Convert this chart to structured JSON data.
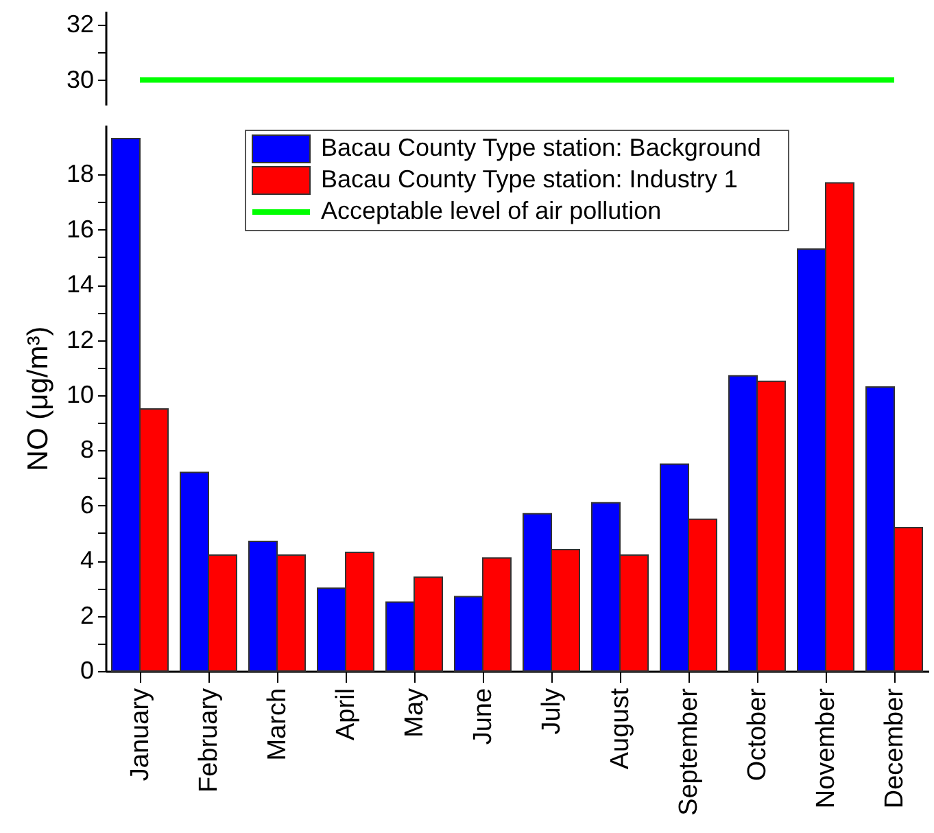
{
  "chart_data": [
    {
      "type": "line",
      "categories": [
        null,
        null,
        null,
        null,
        null,
        null,
        null,
        null,
        null,
        null,
        null,
        null
      ],
      "series": [
        {
          "name": "Acceptable level of air pollution",
          "color": "#00ff00",
          "values": [
            30,
            30,
            30,
            30,
            30,
            30,
            30,
            30,
            30,
            30,
            30,
            30
          ]
        }
      ],
      "ylim": [
        29.1,
        32.5
      ],
      "yticks": [
        30,
        {
          "value": 31,
          "label": null
        },
        32
      ],
      "tick_labels": "y"
    },
    {
      "type": "bar",
      "categories": [
        "January",
        "February",
        "March",
        "April",
        "May",
        "June",
        "July",
        "August",
        "September",
        "October",
        "November",
        "December"
      ],
      "series": [
        {
          "name": "Bacau County Type station: Background",
          "color": "#0000ff",
          "values": [
            19.3,
            7.2,
            4.7,
            3.0,
            2.5,
            2.7,
            5.7,
            6.1,
            7.5,
            10.7,
            15.3,
            10.3
          ]
        },
        {
          "name": "Bacau County Type station: Industry 1",
          "color": "#ff0000",
          "values": [
            9.5,
            4.2,
            4.2,
            4.3,
            3.4,
            4.1,
            4.4,
            4.2,
            5.5,
            10.5,
            17.7,
            5.2
          ]
        }
      ],
      "ylabel": "NO (μg/m³)",
      "ylim": [
        0,
        19.8
      ],
      "yticks": [
        0,
        {
          "value": 1,
          "label": null
        },
        2,
        {
          "value": 3,
          "label": null
        },
        4,
        {
          "value": 5,
          "label": null
        },
        6,
        {
          "value": 7,
          "label": null
        },
        8,
        {
          "value": 9,
          "label": null
        },
        10,
        {
          "value": 11,
          "label": null
        },
        12,
        {
          "value": 13,
          "label": null
        },
        14,
        {
          "value": 15,
          "label": null
        },
        16,
        {
          "value": 17,
          "label": null
        },
        18
      ],
      "legend": "top"
    }
  ]
}
